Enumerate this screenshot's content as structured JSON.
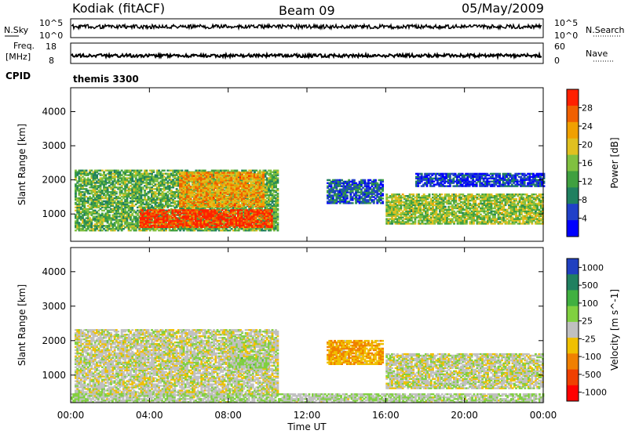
{
  "header": {
    "station": "Kodiak (fitACF)",
    "beam": "Beam 09",
    "date": "05/May/2009"
  },
  "top_panels": {
    "nsky_label": "N.Sky",
    "nsky_ticks": [
      "10^5",
      "10^0"
    ],
    "nsearch_label": "N.Search",
    "nsearch_ticks": [
      "10^5",
      "10^0"
    ],
    "freq_label_1": "Freq.",
    "freq_label_2": "[MHz]",
    "freq_ticks": [
      "18",
      "8"
    ],
    "nave_label": "Nave",
    "nave_ticks": [
      "60",
      "0"
    ],
    "cpid_label": "CPID",
    "cpid_text": "themis 3300"
  },
  "chart_data": [
    {
      "type": "heatmap",
      "name": "power",
      "xlabel": "Time UT",
      "ylabel": "Slant Range [km]",
      "x_ticks": [
        "00:00",
        "04:00",
        "08:00",
        "12:00",
        "16:00",
        "20:00",
        "00:00"
      ],
      "y_ticks": [
        1000,
        2000,
        3000,
        4000
      ],
      "ylim": [
        200,
        4700
      ],
      "colorbar_label": "Power [dB]",
      "colorbar_ticks": [
        4,
        8,
        12,
        16,
        20,
        24,
        28
      ],
      "colorscale": [
        "#0000ff",
        "#2040c8",
        "#208060",
        "#40a040",
        "#80c040",
        "#e0c020",
        "#f0a000",
        "#f06000",
        "#ff2000"
      ],
      "features": [
        {
          "t_start": 0.2,
          "t_end": 10.5,
          "r_low": 500,
          "r_high": 2300,
          "level_db": 14
        },
        {
          "t_start": 3.5,
          "t_end": 10.2,
          "r_low": 600,
          "r_high": 1100,
          "level_db": 28
        },
        {
          "t_start": 5.5,
          "t_end": 9.8,
          "r_low": 1200,
          "r_high": 2200,
          "level_db": 22
        },
        {
          "t_start": 13.0,
          "t_end": 15.8,
          "r_low": 1300,
          "r_high": 2000,
          "level_db": 8
        },
        {
          "t_start": 16.0,
          "t_end": 24.0,
          "r_low": 700,
          "r_high": 1600,
          "level_db": 16
        },
        {
          "t_start": 17.5,
          "t_end": 24.0,
          "r_low": 1800,
          "r_high": 2200,
          "level_db": 6
        }
      ]
    },
    {
      "type": "heatmap",
      "name": "velocity",
      "xlabel": "Time UT",
      "ylabel": "Slant Range [km]",
      "x_ticks": [
        "00:00",
        "04:00",
        "08:00",
        "12:00",
        "16:00",
        "20:00",
        "00:00"
      ],
      "y_ticks": [
        1000,
        2000,
        3000,
        4000
      ],
      "ylim": [
        200,
        4700
      ],
      "colorbar_label": "Velocity [m s^-1]",
      "colorbar_ticks": [
        1000,
        500,
        100,
        25,
        -25,
        -100,
        -500,
        -1000
      ],
      "colorscale": [
        "#2040c0",
        "#208060",
        "#40b040",
        "#80d040",
        "#c0c0c0",
        "#f0c000",
        "#f08000",
        "#f04000",
        "#ff0000"
      ],
      "features": [
        {
          "t_start": 0.2,
          "t_end": 10.5,
          "r_low": 400,
          "r_high": 2300,
          "velocity": 0
        },
        {
          "t_start": 8.0,
          "t_end": 10.0,
          "r_low": 1200,
          "r_high": 1500,
          "velocity": 150
        },
        {
          "t_start": 13.0,
          "t_end": 15.8,
          "r_low": 1300,
          "r_high": 2000,
          "velocity": -300
        },
        {
          "t_start": 16.0,
          "t_end": 24.0,
          "r_low": 600,
          "r_high": 1600,
          "velocity": 0
        },
        {
          "t_start": 0.0,
          "t_end": 24.0,
          "r_low": 200,
          "r_high": 450,
          "velocity": 80
        }
      ]
    }
  ]
}
